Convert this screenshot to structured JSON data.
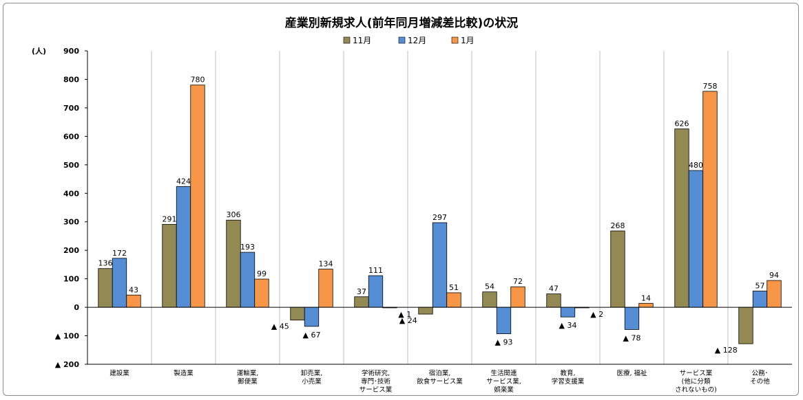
{
  "chart_data": {
    "type": "bar",
    "title": "産業別新規求人(前年同月増減差比較)の状況",
    "ylabel": "(人)",
    "ylim": [
      -200,
      900
    ],
    "yticks": [
      {
        "value": 900,
        "label": "900"
      },
      {
        "value": 800,
        "label": "800"
      },
      {
        "value": 700,
        "label": "700"
      },
      {
        "value": 600,
        "label": "600"
      },
      {
        "value": 500,
        "label": "500"
      },
      {
        "value": 400,
        "label": "400"
      },
      {
        "value": 300,
        "label": "300"
      },
      {
        "value": 200,
        "label": "200"
      },
      {
        "value": 100,
        "label": "100"
      },
      {
        "value": 0,
        "label": "0"
      },
      {
        "value": -100,
        "label": "▲ 100"
      },
      {
        "value": -200,
        "label": "▲ 200"
      }
    ],
    "legend_position": "top-center",
    "categories": [
      [
        "建設業"
      ],
      [
        "製造業"
      ],
      [
        "運輸業,",
        "郵便業"
      ],
      [
        "卸売業,",
        "小売業"
      ],
      [
        "学術研究,",
        "専門･技術",
        "サービス業"
      ],
      [
        "宿泊業,",
        "飲食サービス業"
      ],
      [
        "生活関連",
        "サービス業,",
        "娯楽業"
      ],
      [
        "教育,",
        "学習支援業"
      ],
      [
        "医療, 福祉"
      ],
      [
        "サービス業",
        "(他に分類",
        "されないもの)"
      ],
      [
        "公務･",
        "その他"
      ]
    ],
    "series": [
      {
        "name": "11月",
        "color": "#938953",
        "values": [
          136,
          291,
          306,
          -45,
          37,
          -24,
          54,
          47,
          268,
          626,
          -128
        ],
        "labels": [
          "136",
          "291",
          "306",
          "▲ 45",
          "37",
          "▲ 24",
          "54",
          "47",
          "268",
          "626",
          "▲ 128"
        ]
      },
      {
        "name": "12月",
        "color": "#558ed5",
        "values": [
          172,
          424,
          193,
          -67,
          111,
          297,
          -93,
          -34,
          -78,
          480,
          57
        ],
        "labels": [
          "172",
          "424",
          "193",
          "▲ 67",
          "111",
          "297",
          "▲ 93",
          "▲ 34",
          "▲ 78",
          "480",
          "57"
        ]
      },
      {
        "name": "1月",
        "color": "#f79646",
        "values": [
          43,
          780,
          99,
          134,
          -1,
          51,
          72,
          -2,
          14,
          758,
          94
        ],
        "labels": [
          "43",
          "780",
          "99",
          "134",
          "▲ 1",
          "51",
          "72",
          "▲ 2",
          "14",
          "758",
          "94"
        ]
      }
    ],
    "grid": {
      "horizontal": false,
      "vertical_category_separators": true
    }
  }
}
